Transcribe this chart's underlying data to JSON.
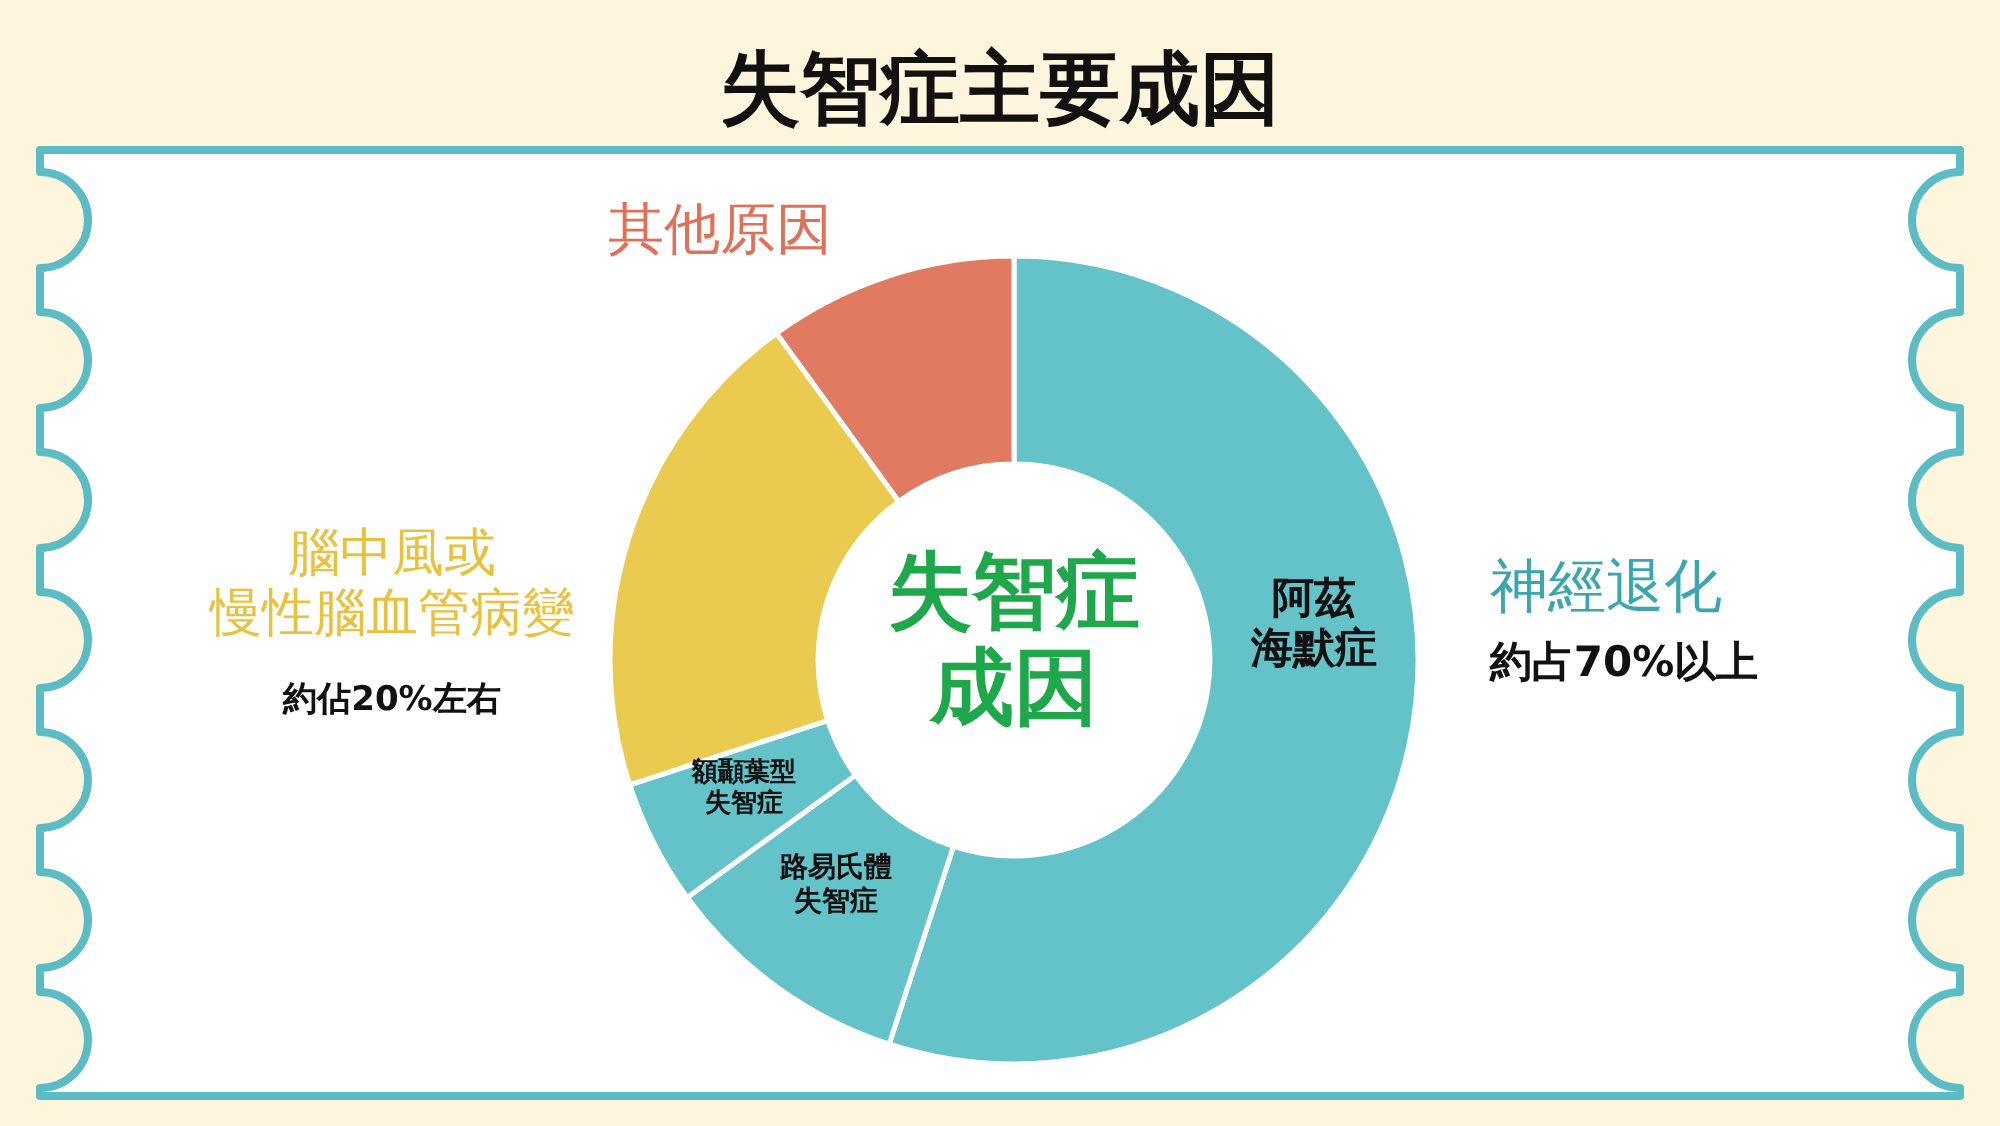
{
  "chart_data": {
    "type": "donut",
    "title": "失智症主要成因",
    "categories": [
      "阿茲海默症",
      "路易氏體失智症",
      "額顳葉型失智症",
      "腦中風或慢性腦血管病變",
      "其他原因"
    ],
    "values": [
      55,
      10,
      5,
      20,
      10
    ],
    "colors": [
      "#63c3c9",
      "#63c3c9",
      "#63c3c9",
      "#ebcb4f",
      "#e07a60"
    ],
    "annotations": [
      "失智症成因",
      "神經退化",
      "約占70%以上",
      "約佔20%左右"
    ]
  }
}
